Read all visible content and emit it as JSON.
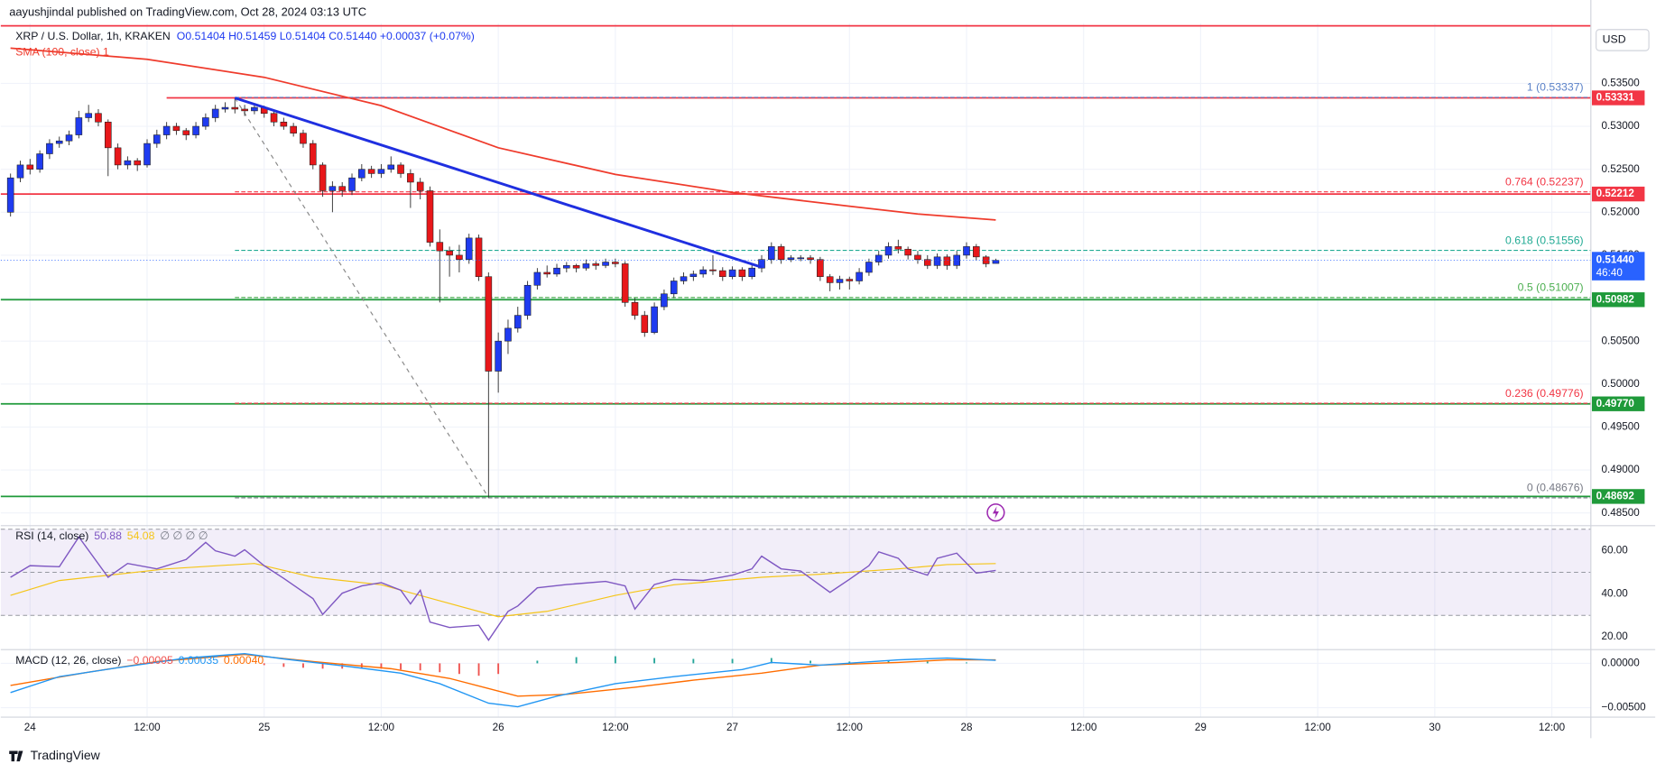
{
  "chart_data": {
    "type": "candlestick",
    "header": "aayushjindal published on TradingView.com, Oct 28, 2024 03:13 UTC",
    "title": "XRP / U.S. Dollar, 1h, KRAKEN",
    "ohlc_text": "O0.51404 H0.51459 L0.51404 C0.51440 +0.00037 (+0.07%)",
    "currency": "USD",
    "brand": "TradingView",
    "up_color": "#1f3bf0",
    "down_color": "#e8171a",
    "xlim": [
      -3,
      160
    ],
    "xticks": [
      {
        "value": 0,
        "label": "24"
      },
      {
        "value": 12,
        "label": "12:00"
      },
      {
        "value": 24,
        "label": "25"
      },
      {
        "value": 36,
        "label": "12:00"
      },
      {
        "value": 48,
        "label": "26"
      },
      {
        "value": 60,
        "label": "12:00"
      },
      {
        "value": 72,
        "label": "27"
      },
      {
        "value": 84,
        "label": "12:00"
      },
      {
        "value": 96,
        "label": "28"
      },
      {
        "value": 108,
        "label": "12:00"
      },
      {
        "value": 120,
        "label": "29"
      },
      {
        "value": 132,
        "label": "12:00"
      },
      {
        "value": 144,
        "label": "30"
      },
      {
        "value": 156,
        "label": "12:00"
      }
    ],
    "ylim": [
      0.4837,
      0.542
    ],
    "yticks": [
      {
        "value": 0.485,
        "label": "0.48500"
      },
      {
        "value": 0.49,
        "label": "0.49000"
      },
      {
        "value": 0.495,
        "label": "0.49500"
      },
      {
        "value": 0.5,
        "label": "0.50000"
      },
      {
        "value": 0.505,
        "label": "0.50500"
      },
      {
        "value": 0.51,
        "label": "0.51000"
      },
      {
        "value": 0.515,
        "label": "0.51500"
      },
      {
        "value": 0.52,
        "label": "0.52000"
      },
      {
        "value": 0.525,
        "label": "0.52500"
      },
      {
        "value": 0.53,
        "label": "0.53000"
      },
      {
        "value": 0.535,
        "label": "0.53500"
      }
    ],
    "x": [
      -2,
      -1,
      0,
      1,
      2,
      3,
      4,
      5,
      6,
      7,
      8,
      9,
      10,
      11,
      12,
      13,
      14,
      15,
      16,
      17,
      18,
      19,
      20,
      21,
      22,
      23,
      24,
      25,
      26,
      27,
      28,
      29,
      30,
      31,
      32,
      33,
      34,
      35,
      36,
      37,
      38,
      39,
      40,
      41,
      42,
      43,
      44,
      45,
      46,
      47,
      48,
      49,
      50,
      51,
      52,
      53,
      54,
      55,
      56,
      57,
      58,
      59,
      60,
      61,
      62,
      63,
      64,
      65,
      66,
      67,
      68,
      69,
      70,
      71,
      72,
      73,
      74,
      75,
      76,
      77,
      78,
      79,
      80,
      81,
      82,
      83,
      84,
      85,
      86,
      87,
      88,
      89,
      90,
      91,
      92,
      93,
      94,
      95,
      96,
      97,
      98,
      99
    ],
    "candles": [
      [
        0.52,
        0.5245,
        0.5195,
        0.524
      ],
      [
        0.524,
        0.526,
        0.5235,
        0.5255
      ],
      [
        0.5255,
        0.5262,
        0.5244,
        0.525
      ],
      [
        0.525,
        0.5272,
        0.5246,
        0.5268
      ],
      [
        0.5268,
        0.5285,
        0.5262,
        0.528
      ],
      [
        0.528,
        0.5288,
        0.5275,
        0.5283
      ],
      [
        0.5283,
        0.5295,
        0.5278,
        0.529
      ],
      [
        0.529,
        0.5318,
        0.5286,
        0.531
      ],
      [
        0.531,
        0.5325,
        0.5305,
        0.5315
      ],
      [
        0.5315,
        0.532,
        0.53,
        0.5305
      ],
      [
        0.5305,
        0.5308,
        0.5242,
        0.5275
      ],
      [
        0.5275,
        0.528,
        0.525,
        0.5255
      ],
      [
        0.5255,
        0.5265,
        0.525,
        0.526
      ],
      [
        0.526,
        0.5263,
        0.5248,
        0.5255
      ],
      [
        0.5255,
        0.5285,
        0.5252,
        0.528
      ],
      [
        0.528,
        0.5296,
        0.5275,
        0.529
      ],
      [
        0.529,
        0.5305,
        0.5285,
        0.53
      ],
      [
        0.53,
        0.5304,
        0.529,
        0.5295
      ],
      [
        0.5295,
        0.5298,
        0.5284,
        0.529
      ],
      [
        0.529,
        0.5305,
        0.5286,
        0.53
      ],
      [
        0.53,
        0.5315,
        0.5296,
        0.531
      ],
      [
        0.531,
        0.5325,
        0.5305,
        0.532
      ],
      [
        0.532,
        0.5328,
        0.5316,
        0.5322
      ],
      [
        0.5322,
        0.5333,
        0.5315,
        0.532
      ],
      [
        0.532,
        0.5325,
        0.5312,
        0.5318
      ],
      [
        0.5318,
        0.5326,
        0.5314,
        0.5322
      ],
      [
        0.5322,
        0.5324,
        0.531,
        0.5315
      ],
      [
        0.5315,
        0.5318,
        0.53,
        0.5305
      ],
      [
        0.5305,
        0.531,
        0.5296,
        0.53
      ],
      [
        0.53,
        0.5304,
        0.5288,
        0.5292
      ],
      [
        0.5292,
        0.5296,
        0.5275,
        0.528
      ],
      [
        0.528,
        0.5284,
        0.525,
        0.5255
      ],
      [
        0.5255,
        0.5258,
        0.5218,
        0.5225
      ],
      [
        0.5225,
        0.5236,
        0.52,
        0.523
      ],
      [
        0.523,
        0.5235,
        0.5218,
        0.5225
      ],
      [
        0.5225,
        0.5245,
        0.522,
        0.524
      ],
      [
        0.524,
        0.5256,
        0.5236,
        0.525
      ],
      [
        0.525,
        0.5254,
        0.524,
        0.5245
      ],
      [
        0.5245,
        0.5256,
        0.524,
        0.525
      ],
      [
        0.525,
        0.5265,
        0.5246,
        0.5255
      ],
      [
        0.5255,
        0.5258,
        0.524,
        0.5245
      ],
      [
        0.5245,
        0.525,
        0.5205,
        0.5235
      ],
      [
        0.5235,
        0.524,
        0.5215,
        0.5225
      ],
      [
        0.5225,
        0.523,
        0.516,
        0.5165
      ],
      [
        0.5165,
        0.518,
        0.5095,
        0.5155
      ],
      [
        0.5155,
        0.516,
        0.5125,
        0.515
      ],
      [
        0.515,
        0.5162,
        0.513,
        0.5145
      ],
      [
        0.5145,
        0.5175,
        0.514,
        0.517
      ],
      [
        0.517,
        0.5174,
        0.512,
        0.5125
      ],
      [
        0.5125,
        0.513,
        0.4868,
        0.5015
      ],
      [
        0.5015,
        0.506,
        0.499,
        0.505
      ],
      [
        0.505,
        0.5075,
        0.5035,
        0.5065
      ],
      [
        0.5065,
        0.509,
        0.506,
        0.508
      ],
      [
        0.508,
        0.512,
        0.5075,
        0.5115
      ],
      [
        0.5115,
        0.5135,
        0.511,
        0.513
      ],
      [
        0.513,
        0.5138,
        0.5124,
        0.5128
      ],
      [
        0.5128,
        0.514,
        0.5125,
        0.5135
      ],
      [
        0.5135,
        0.5142,
        0.513,
        0.5138
      ],
      [
        0.5138,
        0.514,
        0.513,
        0.5135
      ],
      [
        0.5135,
        0.5145,
        0.5132,
        0.514
      ],
      [
        0.514,
        0.5143,
        0.5133,
        0.5138
      ],
      [
        0.5138,
        0.5146,
        0.5135,
        0.5142
      ],
      [
        0.5142,
        0.5146,
        0.5136,
        0.514
      ],
      [
        0.514,
        0.5143,
        0.509,
        0.5095
      ],
      [
        0.5095,
        0.51,
        0.5075,
        0.508
      ],
      [
        0.508,
        0.5085,
        0.5055,
        0.506
      ],
      [
        0.506,
        0.5095,
        0.5058,
        0.509
      ],
      [
        0.509,
        0.511,
        0.5086,
        0.5105
      ],
      [
        0.5105,
        0.5124,
        0.51,
        0.512
      ],
      [
        0.512,
        0.513,
        0.5116,
        0.5125
      ],
      [
        0.5125,
        0.5132,
        0.512,
        0.5128
      ],
      [
        0.5128,
        0.5137,
        0.5124,
        0.5133
      ],
      [
        0.5133,
        0.515,
        0.5127,
        0.5132
      ],
      [
        0.5132,
        0.5136,
        0.512,
        0.5125
      ],
      [
        0.5125,
        0.5137,
        0.5122,
        0.5133
      ],
      [
        0.5133,
        0.5136,
        0.512,
        0.5125
      ],
      [
        0.5125,
        0.514,
        0.5122,
        0.5135
      ],
      [
        0.5135,
        0.515,
        0.513,
        0.5145
      ],
      [
        0.5145,
        0.5165,
        0.514,
        0.516
      ],
      [
        0.516,
        0.5163,
        0.514,
        0.5145
      ],
      [
        0.5145,
        0.515,
        0.5142,
        0.5147
      ],
      [
        0.5147,
        0.515,
        0.5143,
        0.5147
      ],
      [
        0.5147,
        0.515,
        0.514,
        0.5145
      ],
      [
        0.5145,
        0.5148,
        0.512,
        0.5125
      ],
      [
        0.5125,
        0.5128,
        0.5108,
        0.5118
      ],
      [
        0.5118,
        0.5126,
        0.511,
        0.5122
      ],
      [
        0.5122,
        0.5125,
        0.511,
        0.512
      ],
      [
        0.512,
        0.5135,
        0.5116,
        0.513
      ],
      [
        0.513,
        0.5146,
        0.5126,
        0.5142
      ],
      [
        0.5142,
        0.5155,
        0.5138,
        0.515
      ],
      [
        0.515,
        0.5165,
        0.5146,
        0.516
      ],
      [
        0.516,
        0.5168,
        0.5152,
        0.5157
      ],
      [
        0.5157,
        0.516,
        0.5145,
        0.515
      ],
      [
        0.515,
        0.5155,
        0.514,
        0.5145
      ],
      [
        0.5145,
        0.515,
        0.5134,
        0.5138
      ],
      [
        0.5138,
        0.5152,
        0.5134,
        0.5148
      ],
      [
        0.5148,
        0.5151,
        0.5133,
        0.5138
      ],
      [
        0.5138,
        0.5155,
        0.5134,
        0.515
      ],
      [
        0.515,
        0.5165,
        0.5146,
        0.516
      ],
      [
        0.516,
        0.5163,
        0.5144,
        0.5148
      ],
      [
        0.5148,
        0.515,
        0.5136,
        0.514
      ],
      [
        0.51404,
        0.51459,
        0.51404,
        0.5144
      ]
    ],
    "sma": {
      "name": "SMA (100, close) 1",
      "color": "#ef3b2c",
      "x": [
        -2,
        12,
        24,
        36,
        48,
        60,
        72,
        84,
        91,
        99
      ],
      "values": [
        0.5391,
        0.5378,
        0.5357,
        0.5324,
        0.5275,
        0.5244,
        0.5223,
        0.5207,
        0.5198,
        0.5191
      ]
    },
    "trendline": {
      "color": "#1f2fe0",
      "x": [
        21,
        75
      ],
      "values": [
        0.5333,
        0.5136
      ]
    },
    "projection": {
      "color": "#888888",
      "x": [
        21,
        47
      ],
      "values": [
        0.5333,
        0.4868
      ]
    },
    "levels": [
      {
        "price": 0.5417,
        "color": "#f23645",
        "start": -3
      },
      {
        "price": 0.53331,
        "color": "#f23645",
        "start": 14
      },
      {
        "price": 0.52212,
        "color": "#f23645",
        "start": -3
      },
      {
        "price": 0.50982,
        "color": "#1f9a3a",
        "start": -3
      },
      {
        "price": {
          "value": 0.4977,
          "label": "0.49770"
        },
        "color": "#1f9a3a",
        "start": -3
      },
      {
        "price": 0.48692,
        "color": "#1f9a3a",
        "start": -3
      }
    ],
    "fib": {
      "start": 21,
      "levels": [
        {
          "value": 0.53337,
          "label": "1 (0.53337)",
          "color": "#5b82c8"
        },
        {
          "value": 0.52237,
          "label": "0.764 (0.52237)",
          "color": "#f23645"
        },
        {
          "value": 0.51556,
          "label": "0.618 (0.51556)",
          "color": "#22ab94"
        },
        {
          "value": 0.51007,
          "label": "0.5 (0.51007)",
          "color": "#4caf50"
        },
        {
          "value": 0.49776,
          "label": "0.236 (0.49776)",
          "color": "#f23645"
        },
        {
          "value": 0.48676,
          "label": "0 (0.48676)",
          "color": "#787b86"
        }
      ]
    },
    "last_price": {
      "value": {
        "value": 0.5144,
        "label": "0.51440"
      },
      "countdown": "46:40",
      "color": "#2962ff"
    },
    "rsi": {
      "name": "RSI (14, close)",
      "legend": [
        {
          "text": "50.88",
          "color": "#7e57c2"
        },
        {
          "text": "54.08",
          "color": "#f5c518"
        },
        {
          "text": "∅ ∅ ∅ ∅",
          "color": "#787b86"
        }
      ],
      "ylim": [
        14.6,
        71.4
      ],
      "yticks": [
        {
          "value": 20,
          "label": "20.00"
        },
        {
          "value": 40,
          "label": "40.00"
        },
        {
          "value": 60,
          "label": "60.00"
        }
      ],
      "band": [
        30,
        70
      ],
      "mid": 50,
      "line": {
        "color": "#7e57c2",
        "x": [
          -2,
          0,
          3,
          5,
          8,
          10,
          13,
          16,
          18,
          19,
          21,
          22,
          24,
          26,
          29,
          30,
          32,
          34,
          36,
          38,
          39,
          40,
          41,
          43,
          46,
          47,
          49,
          50,
          52,
          55,
          59,
          61,
          62,
          64,
          66,
          69,
          72,
          74,
          75,
          77,
          79,
          82,
          84,
          86,
          87,
          89,
          90,
          92,
          93,
          95,
          97,
          99
        ],
        "values": [
          47.7,
          53.1,
          52.6,
          66.4,
          47.7,
          54.1,
          51.6,
          56.0,
          63.9,
          60.0,
          57.5,
          60.5,
          53.1,
          47.2,
          37.8,
          30.4,
          40.3,
          43.7,
          45.2,
          41.7,
          35.3,
          41.7,
          26.9,
          24.4,
          25.4,
          18.5,
          31.9,
          34.4,
          42.8,
          44.3,
          45.8,
          43.7,
          32.9,
          44.3,
          46.7,
          46.2,
          48.7,
          51.6,
          57.5,
          51.6,
          50.6,
          40.7,
          46.7,
          53.1,
          59.5,
          56.5,
          51.6,
          48.7,
          56.5,
          58.9,
          49.6,
          50.88
        ]
      },
      "ma": {
        "color": "#f5c518",
        "x": [
          -2,
          3,
          9,
          14,
          23,
          29,
          36,
          42,
          48,
          53,
          60,
          66,
          75,
          81,
          89,
          94,
          99
        ],
        "values": [
          39.3,
          46.2,
          49.1,
          51.6,
          54.1,
          47.7,
          44.2,
          36.8,
          29.4,
          31.9,
          39.3,
          44.2,
          47.7,
          49.1,
          51.6,
          53.6,
          54.08
        ]
      }
    },
    "macd": {
      "name": "MACD (12, 26, close)",
      "legend": [
        {
          "text": "−0.00005",
          "color": "#ef5350"
        },
        {
          "text": "0.00035",
          "color": "#2196f3"
        },
        {
          "text": "0.00040",
          "color": "#ff6d00"
        }
      ],
      "ylim": [
        -0.00607,
        0.00143
      ],
      "yticks": [
        {
          "value": 0,
          "label": "0.00000"
        },
        {
          "value": -0.005,
          "label": "−0.00500"
        }
      ],
      "macd": {
        "color": "#2196f3",
        "x": [
          -2,
          3,
          9,
          16,
          22,
          26,
          33,
          38,
          42,
          47,
          50,
          54,
          60,
          66,
          73,
          76,
          81,
          89,
          94,
          99
        ],
        "values": [
          -0.0033,
          -0.0015,
          -0.0005,
          0.0006,
          0.0011,
          0.0005,
          -0.0004,
          -0.0011,
          -0.0023,
          -0.0045,
          -0.0049,
          -0.0037,
          -0.0023,
          -0.0015,
          -0.0007,
          0.0001,
          -0.0002,
          0.0004,
          0.0006,
          0.00035
        ]
      },
      "signal": {
        "color": "#ff6d00",
        "x": [
          -2,
          6,
          13,
          22,
          29,
          37,
          43,
          50,
          55,
          62,
          68,
          75,
          81,
          89,
          94,
          99
        ],
        "values": [
          -0.0025,
          -0.001,
          0.0002,
          0.001,
          0.0002,
          -0.0006,
          -0.0017,
          -0.0037,
          -0.0035,
          -0.0027,
          -0.0019,
          -0.0011,
          -0.0002,
          0.0001,
          0.0004,
          0.0004
        ]
      },
      "hist": {
        "up_color": "#26a69a",
        "down_color": "#ef5350",
        "x": [
          24,
          26,
          28,
          30,
          32,
          34,
          36,
          38,
          40,
          42,
          44,
          46,
          48,
          52,
          56,
          60,
          64,
          68,
          72,
          76,
          80,
          84,
          88,
          92,
          96
        ],
        "values": [
          -0.0002,
          -0.0004,
          -0.0005,
          -0.0006,
          -0.0006,
          -0.0005,
          -0.0006,
          -0.0007,
          -0.0008,
          -0.001,
          -0.0012,
          -0.0014,
          -0.0012,
          0.0003,
          0.0007,
          0.0008,
          0.0006,
          0.0005,
          0.0005,
          0.0006,
          0.0003,
          0.0002,
          0.0003,
          0.0002,
          0.0001
        ]
      }
    }
  }
}
